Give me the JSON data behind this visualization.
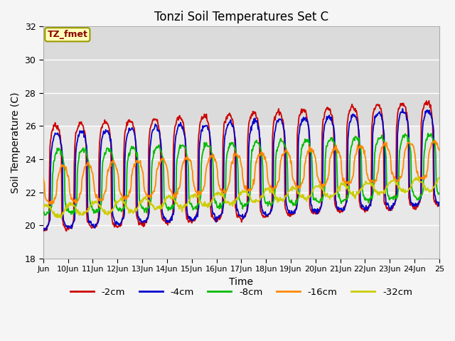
{
  "title": "Tonzi Soil Temperatures Set C",
  "xlabel": "Time",
  "ylabel": "Soil Temperature (C)",
  "ylim": [
    18,
    32
  ],
  "yticks": [
    18,
    20,
    22,
    24,
    26,
    28,
    30,
    32
  ],
  "xtick_labels": [
    "Jun",
    "10Jun",
    "11Jun",
    "12Jun",
    "13Jun",
    "14Jun",
    "15Jun",
    "16Jun",
    "17Jun",
    "18Jun",
    "19Jun",
    "20Jun",
    "21Jun",
    "22Jun",
    "23Jun",
    "24Jun",
    "25"
  ],
  "line_colors": [
    "#cc0000",
    "#0000cc",
    "#00bb00",
    "#ff8800",
    "#cccc00"
  ],
  "line_labels": [
    "-2cm",
    "-4cm",
    "-8cm",
    "-16cm",
    "-32cm"
  ],
  "annotation_text": "TZ_fmet",
  "annotation_bg": "#ffffbb",
  "annotation_border": "#999900",
  "annotation_text_color": "#880000",
  "plot_bg": "#e8e8e8",
  "plot_bg_inner": "#dcdcdc",
  "grid_color": "#ffffff",
  "n_days": 16,
  "n_per_day": 48,
  "figsize": [
    6.4,
    4.8
  ],
  "dpi": 100,
  "amplitudes_up": [
    4.5,
    4.0,
    2.5,
    1.3,
    0.4
  ],
  "amplitudes_dn": [
    1.8,
    1.7,
    1.3,
    0.9,
    0.3
  ],
  "phase_lags_days": [
    0.0,
    0.04,
    0.12,
    0.3,
    0.6
  ],
  "mean_start": [
    21.5,
    21.5,
    22.0,
    22.2,
    20.8
  ],
  "mean_end": [
    23.0,
    23.0,
    23.0,
    23.8,
    22.5
  ],
  "sharpness": [
    6.0,
    5.0,
    3.5,
    2.0,
    1.2
  ]
}
